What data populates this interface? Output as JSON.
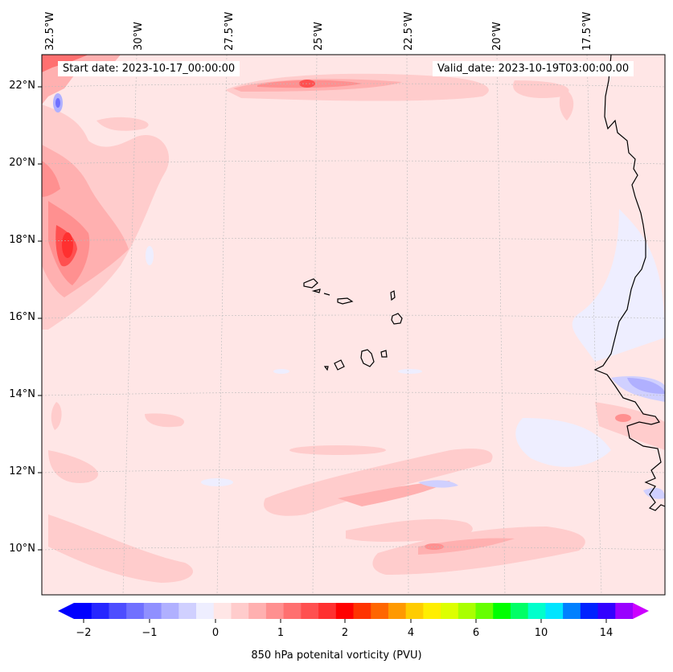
{
  "map": {
    "start_date_text": "Start date: 2023-10-17_00:00:00",
    "valid_date_text": "Valid_date: 2023-10-19T03:00:00.00",
    "longitude_labels": [
      "32.5°W",
      "30°W",
      "27.5°W",
      "25°W",
      "22.5°W",
      "20°W",
      "17.5°W"
    ],
    "latitude_labels": [
      "22°N",
      "20°N",
      "18°N",
      "16°N",
      "14°N",
      "12°N",
      "10°N"
    ],
    "region": "Cabo Verde Islands and West African coast",
    "colors": {
      "background_field": "#ffe6e6",
      "light_red": "#ffcccc",
      "medium_red": "#ffb0b0",
      "strong_red": "#ff5050",
      "light_blue": "#e8e8ff",
      "coastline": "#000000"
    }
  },
  "colorbar": {
    "title": "850 hPa potenital vorticity (PVU)",
    "tick_labels": [
      "−2",
      "−1",
      "0",
      "1",
      "2",
      "4",
      "6",
      "10",
      "14"
    ],
    "color_steps": [
      "#0000ff",
      "#2626ff",
      "#4d4dff",
      "#7070ff",
      "#9090ff",
      "#b0b0ff",
      "#d0d0ff",
      "#eeeeff",
      "#ffe6e6",
      "#ffcccc",
      "#ffb0b0",
      "#ff9090",
      "#ff7070",
      "#ff5050",
      "#ff3030",
      "#ff0000",
      "#ff3300",
      "#ff6600",
      "#ff9900",
      "#ffcc00",
      "#ffee00",
      "#ddff00",
      "#aaff00",
      "#66ff00",
      "#00ff00",
      "#00ff66",
      "#00ffcc",
      "#00e5ff",
      "#0080ff",
      "#0022ff",
      "#3300ff",
      "#9900ff"
    ],
    "under_color": "#0000ff",
    "over_color": "#cc00ff"
  }
}
